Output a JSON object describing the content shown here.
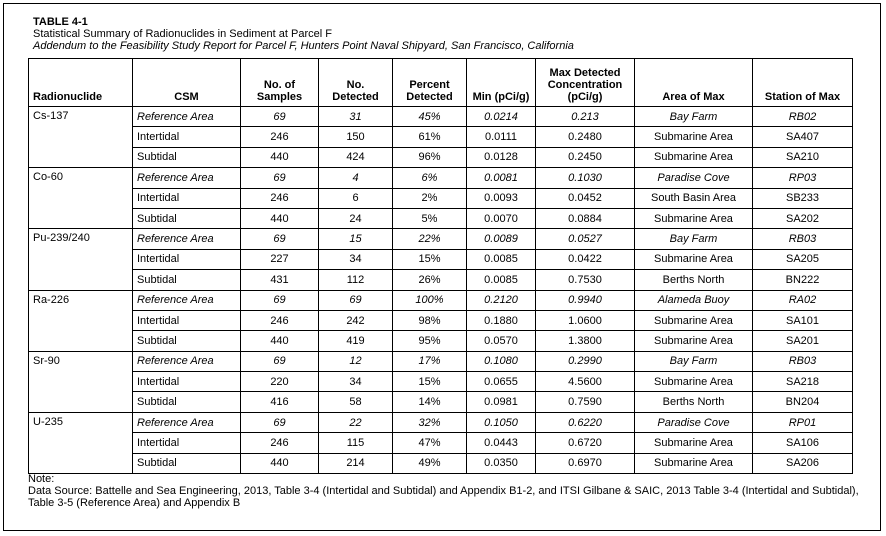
{
  "header": {
    "label": "TABLE 4-1",
    "title": "Statistical Summary of Radionuclides in Sediment at Parcel F",
    "subtitle": "Addendum to the Feasibility Study Report for Parcel F, Hunters Point Naval Shipyard, San Francisco, California"
  },
  "table": {
    "columns": [
      "Radionuclide",
      "CSM",
      "No. of Samples",
      "No. Detected",
      "Percent Detected",
      "Min (pCi/g)",
      "Max Detected Concentration (pCi/g)",
      "Area of Max",
      "Station of Max"
    ],
    "groups": [
      {
        "nuclide": "Cs-137",
        "rows": [
          [
            "Reference Area",
            "69",
            "31",
            "45%",
            "0.0214",
            "0.213",
            "Bay Farm",
            "RB02"
          ],
          [
            "Intertidal",
            "246",
            "150",
            "61%",
            "0.0111",
            "0.2480",
            "Submarine Area",
            "SA407"
          ],
          [
            "Subtidal",
            "440",
            "424",
            "96%",
            "0.0128",
            "0.2450",
            "Submarine Area",
            "SA210"
          ]
        ]
      },
      {
        "nuclide": "Co-60",
        "rows": [
          [
            "Reference Area",
            "69",
            "4",
            "6%",
            "0.0081",
            "0.1030",
            "Paradise Cove",
            "RP03"
          ],
          [
            "Intertidal",
            "246",
            "6",
            "2%",
            "0.0093",
            "0.0452",
            "South Basin Area",
            "SB233"
          ],
          [
            "Subtidal",
            "440",
            "24",
            "5%",
            "0.0070",
            "0.0884",
            "Submarine Area",
            "SA202"
          ]
        ]
      },
      {
        "nuclide": "Pu-239/240",
        "rows": [
          [
            "Reference Area",
            "69",
            "15",
            "22%",
            "0.0089",
            "0.0527",
            "Bay Farm",
            "RB03"
          ],
          [
            "Intertidal",
            "227",
            "34",
            "15%",
            "0.0085",
            "0.0422",
            "Submarine Area",
            "SA205"
          ],
          [
            "Subtidal",
            "431",
            "112",
            "26%",
            "0.0085",
            "0.7530",
            "Berths North",
            "BN222"
          ]
        ]
      },
      {
        "nuclide": "Ra-226",
        "rows": [
          [
            "Reference Area",
            "69",
            "69",
            "100%",
            "0.2120",
            "0.9940",
            "Alameda Buoy",
            "RA02"
          ],
          [
            "Intertidal",
            "246",
            "242",
            "98%",
            "0.1880",
            "1.0600",
            "Submarine Area",
            "SA101"
          ],
          [
            "Subtidal",
            "440",
            "419",
            "95%",
            "0.0570",
            "1.3800",
            "Submarine Area",
            "SA201"
          ]
        ]
      },
      {
        "nuclide": "Sr-90",
        "rows": [
          [
            "Reference Area",
            "69",
            "12",
            "17%",
            "0.1080",
            "0.2990",
            "Bay Farm",
            "RB03"
          ],
          [
            "Intertidal",
            "220",
            "34",
            "15%",
            "0.0655",
            "4.5600",
            "Submarine Area",
            "SA218"
          ],
          [
            "Subtidal",
            "416",
            "58",
            "14%",
            "0.0981",
            "0.7590",
            "Berths North",
            "BN204"
          ]
        ]
      },
      {
        "nuclide": "U-235",
        "rows": [
          [
            "Reference Area",
            "69",
            "22",
            "32%",
            "0.1050",
            "0.6220",
            "Paradise Cove",
            "RP01"
          ],
          [
            "Intertidal",
            "246",
            "115",
            "47%",
            "0.0443",
            "0.6720",
            "Submarine Area",
            "SA106"
          ],
          [
            "Subtidal",
            "440",
            "214",
            "49%",
            "0.0350",
            "0.6970",
            "Submarine Area",
            "SA206"
          ]
        ]
      }
    ]
  },
  "note": {
    "label": "Note:",
    "text": "Data Source: Battelle and Sea Engineering, 2013, Table 3-4 (Intertidal and Subtidal) and Appendix B1-2, and ITSI Gilbane & SAIC, 2013 Table 3-4 (Intertidal and Subtidal), Table 3-5 (Reference Area) and Appendix B"
  }
}
